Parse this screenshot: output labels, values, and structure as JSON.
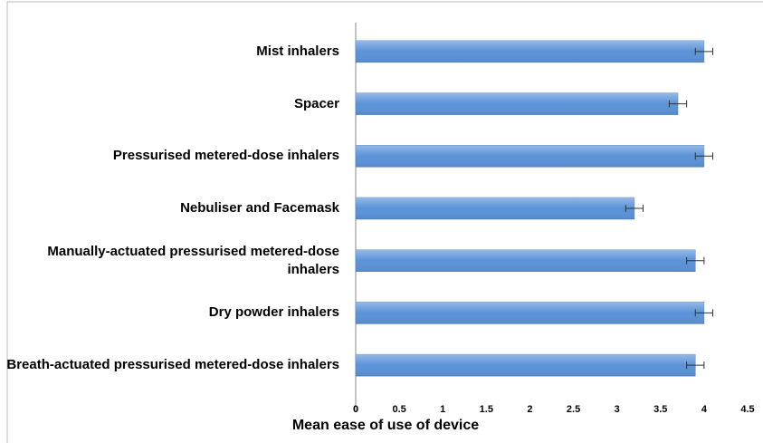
{
  "chart_data": {
    "type": "bar",
    "orientation": "horizontal",
    "categories": [
      "Mist inhalers",
      "Spacer",
      "Pressurised metered-dose inhalers",
      "Nebuliser and Facemask",
      "Manually-actuated pressurised metered-dose inhalers",
      "Dry powder inhalers",
      "Breath-actuated pressurised metered-dose inhalers"
    ],
    "values": [
      4.0,
      3.7,
      4.0,
      3.2,
      3.9,
      4.0,
      3.9
    ],
    "errors": [
      0.1,
      0.1,
      0.1,
      0.1,
      0.1,
      0.1,
      0.1
    ],
    "color": "#5b93d8",
    "xlabel": "Mean ease of use of device",
    "xlim": [
      0,
      4.5
    ],
    "xticks": [
      0,
      0.5,
      1,
      1.5,
      2,
      2.5,
      3,
      3.5,
      4,
      4.5
    ]
  }
}
